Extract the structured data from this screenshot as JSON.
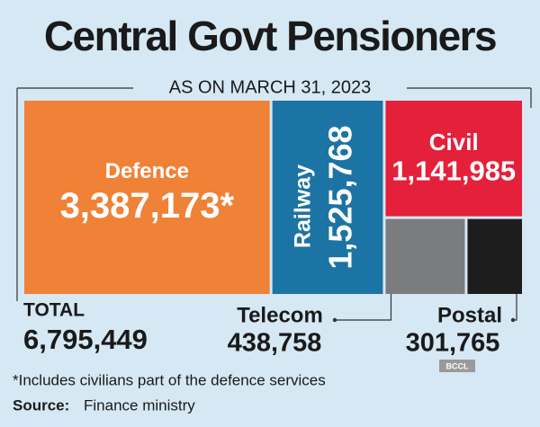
{
  "title": "Central Govt Pensioners",
  "subtitle": "AS ON MARCH 31, 2023",
  "chart_data": {
    "type": "treemap",
    "categories": [
      "Defence",
      "Railway",
      "Civil",
      "Telecom",
      "Postal"
    ],
    "values": [
      3387173,
      1525768,
      1141985,
      438758,
      301765
    ],
    "value_labels": [
      "3,387,173*",
      "1,525,768",
      "1,141,985",
      "438,758",
      "301,765"
    ],
    "colors": [
      "#ef8237",
      "#1c74a4",
      "#e4203b",
      "#7b7c7e",
      "#1d1d1d"
    ]
  },
  "total_title": "TOTAL",
  "total": "6,795,449",
  "footnote": "*Includes civilians part of the defence services",
  "source_label": "Source:",
  "source": "Finance ministry",
  "credit": "BCCL"
}
